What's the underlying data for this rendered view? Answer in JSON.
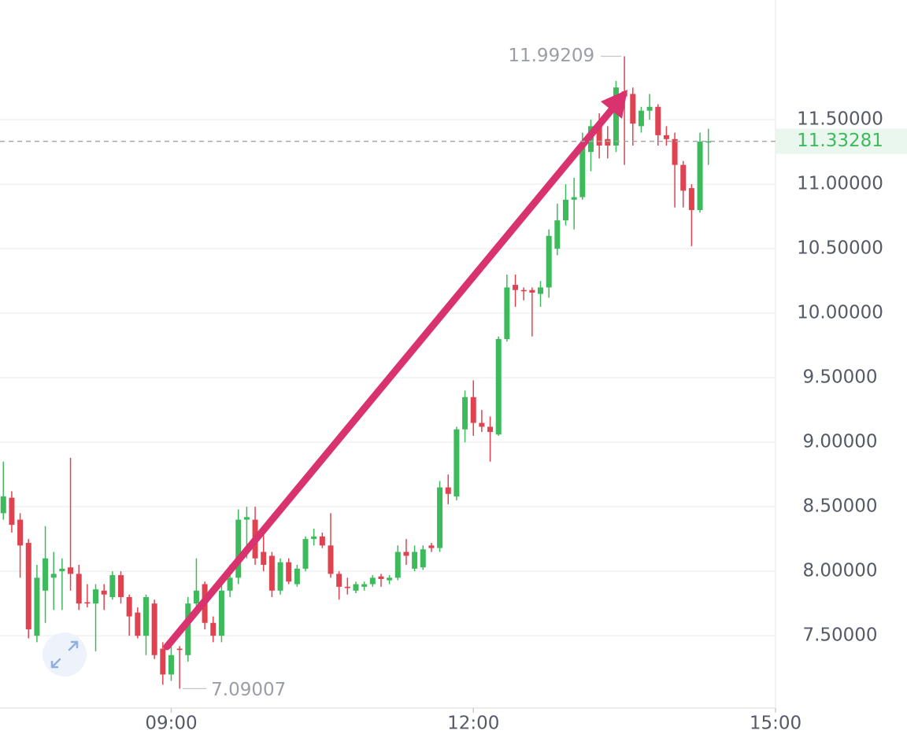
{
  "chart_data": {
    "type": "candlestick",
    "x": [
      "07:20",
      "07:25",
      "07:30",
      "07:35",
      "07:40",
      "07:45",
      "07:50",
      "07:55",
      "08:00",
      "08:05",
      "08:10",
      "08:15",
      "08:20",
      "08:25",
      "08:30",
      "08:35",
      "08:40",
      "08:45",
      "08:50",
      "08:55",
      "09:00",
      "09:05",
      "09:10",
      "09:15",
      "09:20",
      "09:25",
      "09:30",
      "09:35",
      "09:40",
      "09:45",
      "09:50",
      "09:55",
      "10:00",
      "10:05",
      "10:10",
      "10:15",
      "10:20",
      "10:25",
      "10:30",
      "10:35",
      "10:40",
      "10:45",
      "10:50",
      "10:55",
      "11:00",
      "11:05",
      "11:10",
      "11:15",
      "11:20",
      "11:25",
      "11:30",
      "11:35",
      "11:40",
      "11:45",
      "11:50",
      "11:55",
      "12:00",
      "12:05",
      "12:10",
      "12:15",
      "12:20",
      "12:25",
      "12:30",
      "12:35",
      "12:40",
      "12:45",
      "12:50",
      "12:55",
      "13:00",
      "13:05",
      "13:10",
      "13:15",
      "13:20",
      "13:25",
      "13:30",
      "13:35",
      "13:40",
      "13:45",
      "13:50",
      "13:55",
      "14:00",
      "14:05",
      "14:10",
      "14:15",
      "14:20"
    ],
    "open": [
      8.45,
      8.57,
      8.4,
      8.22,
      7.5,
      7.85,
      7.95,
      8.0,
      8.03,
      7.98,
      7.76,
      7.75,
      7.85,
      7.8,
      7.97,
      7.8,
      7.68,
      7.5,
      7.75,
      7.4,
      7.2,
      7.4,
      7.35,
      7.75,
      7.9,
      7.6,
      7.5,
      7.85,
      7.95,
      8.4,
      8.4,
      8.15,
      8.12,
      7.85,
      8.07,
      7.9,
      8.02,
      8.25,
      8.27,
      8.2,
      7.98,
      7.88,
      7.85,
      7.88,
      7.9,
      7.96,
      7.93,
      7.95,
      8.15,
      8.02,
      8.03,
      8.2,
      8.18,
      8.65,
      8.58,
      9.1,
      9.35,
      9.15,
      9.12,
      9.06,
      9.8,
      10.22,
      10.18,
      10.18,
      10.15,
      10.2,
      10.5,
      10.72,
      10.88,
      10.9,
      11.25,
      11.45,
      11.35,
      11.3,
      11.72,
      11.7,
      11.45,
      11.57,
      11.6,
      11.38,
      11.35,
      11.15,
      10.97,
      10.8,
      11.33
    ],
    "high": [
      8.85,
      8.62,
      8.45,
      8.25,
      8.05,
      8.35,
      8.15,
      8.1,
      8.88,
      8.05,
      7.9,
      7.9,
      7.9,
      8.0,
      8.0,
      7.82,
      7.72,
      7.82,
      7.78,
      7.45,
      7.45,
      7.42,
      7.8,
      8.1,
      7.92,
      7.65,
      7.9,
      8.05,
      8.48,
      8.5,
      8.5,
      8.3,
      8.15,
      8.1,
      8.1,
      8.05,
      8.27,
      8.33,
      8.3,
      8.45,
      8.0,
      7.95,
      7.92,
      7.92,
      7.97,
      7.98,
      7.97,
      8.2,
      8.25,
      8.2,
      8.2,
      8.22,
      8.7,
      8.75,
      9.12,
      9.4,
      9.48,
      9.25,
      9.2,
      9.82,
      10.3,
      10.3,
      10.2,
      10.2,
      10.25,
      10.65,
      10.85,
      11.0,
      11.05,
      11.4,
      11.5,
      11.55,
      11.45,
      11.8,
      11.99209,
      11.75,
      11.6,
      11.7,
      11.62,
      11.45,
      11.4,
      11.18,
      11.0,
      11.4,
      11.43
    ],
    "low": [
      8.4,
      8.3,
      7.95,
      7.48,
      7.45,
      7.6,
      7.7,
      7.7,
      7.85,
      7.7,
      7.72,
      7.38,
      7.7,
      7.78,
      7.75,
      7.5,
      7.48,
      7.35,
      7.32,
      7.12,
      7.15,
      7.09007,
      7.3,
      7.7,
      7.55,
      7.45,
      7.45,
      7.8,
      7.9,
      8.1,
      8.05,
      8.0,
      7.8,
      7.82,
      7.9,
      7.88,
      8.0,
      8.2,
      8.18,
      7.95,
      7.78,
      7.82,
      7.83,
      7.85,
      7.88,
      7.88,
      7.9,
      7.93,
      8.05,
      8.0,
      8.01,
      8.15,
      8.15,
      8.52,
      8.55,
      9.0,
      9.05,
      9.08,
      8.85,
      9.05,
      9.78,
      10.05,
      10.1,
      9.82,
      10.05,
      10.12,
      10.45,
      10.68,
      10.65,
      10.88,
      11.1,
      11.2,
      11.2,
      11.25,
      11.15,
      11.3,
      11.4,
      11.5,
      11.3,
      11.3,
      10.82,
      10.82,
      10.52,
      10.78,
      11.15
    ],
    "close": [
      8.58,
      8.36,
      8.2,
      7.55,
      7.95,
      8.1,
      7.98,
      8.02,
      7.98,
      7.75,
      7.75,
      7.86,
      7.82,
      7.97,
      7.8,
      7.65,
      7.5,
      7.8,
      7.35,
      7.2,
      7.35,
      7.39,
      7.75,
      7.85,
      7.6,
      7.5,
      7.85,
      7.95,
      8.4,
      8.42,
      8.1,
      8.05,
      7.85,
      8.07,
      7.92,
      8.02,
      8.25,
      8.27,
      8.2,
      7.98,
      7.88,
      7.87,
      7.9,
      7.9,
      7.95,
      7.94,
      7.95,
      8.15,
      8.12,
      8.15,
      8.17,
      8.18,
      8.65,
      8.6,
      9.1,
      9.35,
      9.15,
      9.12,
      9.08,
      9.8,
      10.2,
      10.18,
      10.17,
      10.16,
      10.2,
      10.6,
      10.72,
      10.88,
      10.9,
      11.3,
      11.45,
      11.3,
      11.3,
      11.75,
      11.68,
      11.47,
      11.57,
      11.6,
      11.38,
      11.35,
      11.15,
      10.95,
      10.8,
      11.33,
      11.33281
    ],
    "up_color": "#3dba5c",
    "down_color": "#e0434f",
    "xlim": [
      "07:18",
      "15:00"
    ],
    "xticks": [
      "09:00",
      "12:00",
      "15:00"
    ],
    "ylim": [
      6.94,
      12.3
    ],
    "yticks": [
      {
        "value": 7.5,
        "label": "7.50000"
      },
      {
        "value": 8,
        "label": "8.00000"
      },
      {
        "value": 8.5,
        "label": "8.50000"
      },
      {
        "value": 9,
        "label": "9.00000"
      },
      {
        "value": 9.5,
        "label": "9.50000"
      },
      {
        "value": 10,
        "label": "10.00000"
      },
      {
        "value": 10.5,
        "label": "10.50000"
      },
      {
        "value": 11,
        "label": "11.00000"
      },
      {
        "value": 11.5,
        "label": "11.50000"
      }
    ],
    "grid": true,
    "last_price": 11.33281,
    "max_label": 11.99209,
    "min_label": 7.09007
  }
}
